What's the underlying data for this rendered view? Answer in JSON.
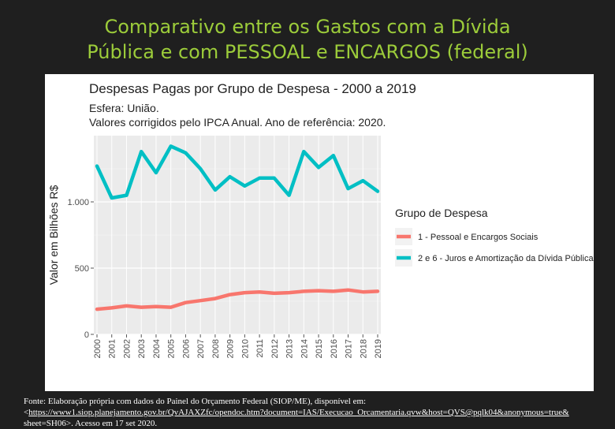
{
  "slide": {
    "title_line1": "Comparativo entre os Gastos com a Dívida",
    "title_line2": "Pública e com PESSOAL e ENCARGOS (federal)"
  },
  "footer": {
    "line1": "Fonte: Elaboração própria com dados do Painel do Orçamento Federal (SIOP/ME), disponível em:",
    "link_prefix": "<",
    "link": "https://www1.siop.planejamento.gov.br/QvAJAXZfc/opendoc.htm?document=IAS/Execucao_Orcamentaria.qvw&host=QVS@pqlk04&anonymous=true&",
    "line3": "sheet=SH06>. Acesso em 17 set 2020."
  },
  "chart_data": {
    "type": "line",
    "title": "Despesas Pagas por Grupo de Despesa - 2000 a 2019",
    "subtitle_line1": "Esfera: União.",
    "subtitle_line2": "Valores corrigidos pelo IPCA Anual. Ano de referência: 2020.",
    "xlabel": "",
    "ylabel": "Valor em Bilhões R$",
    "ylim": [
      0,
      1500
    ],
    "yticks": [
      0,
      500,
      1000
    ],
    "ytick_labels": [
      "0",
      "500",
      "1.000"
    ],
    "x": [
      "2000",
      "2001",
      "2002",
      "2003",
      "2004",
      "2005",
      "2006",
      "2007",
      "2008",
      "2009",
      "2010",
      "2011",
      "2012",
      "2013",
      "2014",
      "2015",
      "2016",
      "2017",
      "2018",
      "2019"
    ],
    "grid": true,
    "legend_title": "Grupo de Despesa",
    "legend_position": "right",
    "series": [
      {
        "name": "1 - Pessoal e Encargos Sociais",
        "color": "#f8766d",
        "values": [
          190,
          200,
          215,
          205,
          210,
          205,
          240,
          255,
          270,
          300,
          315,
          320,
          310,
          315,
          325,
          330,
          325,
          335,
          320,
          325
        ]
      },
      {
        "name": "2 e 6 - Juros e Amortização da Dívida Pública",
        "color": "#00bfc4",
        "values": [
          1270,
          1030,
          1050,
          1380,
          1220,
          1420,
          1370,
          1250,
          1090,
          1190,
          1120,
          1180,
          1180,
          1050,
          1380,
          1260,
          1350,
          1100,
          1160,
          1080
        ]
      }
    ]
  }
}
